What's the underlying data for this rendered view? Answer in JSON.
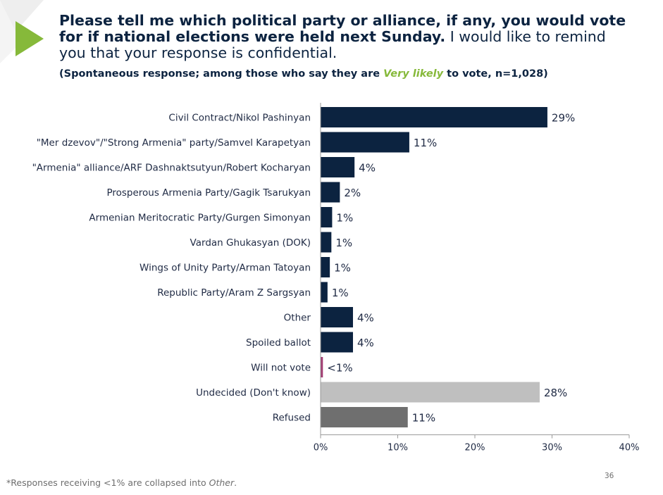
{
  "header": {
    "title_bold_line1": "Please tell me which political party or alliance, if any, you would vote",
    "title_bold_line2": "for if national elections were held next Sunday.",
    "title_normal_line2": " I would like to remind",
    "title_normal_line3": "you that your response is confidential.",
    "subtitle_prefix": "(Spontaneous response; among those who say they are ",
    "subtitle_highlight": "Very likely",
    "subtitle_suffix": " to vote, n=1,028)"
  },
  "colors": {
    "navy": "#0c2340",
    "magenta": "#a23b72",
    "light_gray": "#bfbfbf",
    "dark_gray": "#6f6f6f",
    "accent_green": "#86b93a"
  },
  "chart_data": {
    "type": "bar",
    "orientation": "horizontal",
    "categories": [
      "Civil Contract/Nikol Pashinyan",
      "\"Mer dzevov\"/\"Strong Armenia\" party/Samvel Karapetyan",
      "\"Armenia\" alliance/ARF Dashnaktsutyun/Robert Kocharyan",
      "Prosperous Armenia Party/Gagik Tsarukyan",
      "Armenian Meritocratic Party/Gurgen Simonyan",
      "Vardan Ghukasyan (DOK)",
      "Wings of Unity Party/Arman Tatoyan",
      "Republic Party/Aram Z Sargsyan",
      "Other",
      "Spoiled ballot",
      "Will not vote",
      "Undecided (Don't know)",
      "Refused"
    ],
    "values": [
      29.4,
      11.5,
      4.4,
      2.5,
      1.5,
      1.4,
      1.2,
      0.9,
      4.2,
      4.2,
      0.3,
      28.4,
      11.3
    ],
    "labels": [
      "29%",
      "11%",
      "4%",
      "2%",
      "1%",
      "1%",
      "1%",
      "1%",
      "4%",
      "4%",
      "<1%",
      "28%",
      "11%"
    ],
    "bar_colors": [
      "navy",
      "navy",
      "navy",
      "navy",
      "navy",
      "navy",
      "navy",
      "navy",
      "navy",
      "navy",
      "magenta",
      "light_gray",
      "dark_gray"
    ],
    "xlim": [
      0,
      40
    ],
    "ticks": [
      "0%",
      "10%",
      "20%",
      "30%",
      "40%"
    ],
    "xlabel": "",
    "ylabel": "",
    "grid": false
  },
  "footnote": {
    "prefix": "*Responses receiving <1% are collapsed into ",
    "em": "Other",
    "suffix": "."
  },
  "page_number": "36"
}
